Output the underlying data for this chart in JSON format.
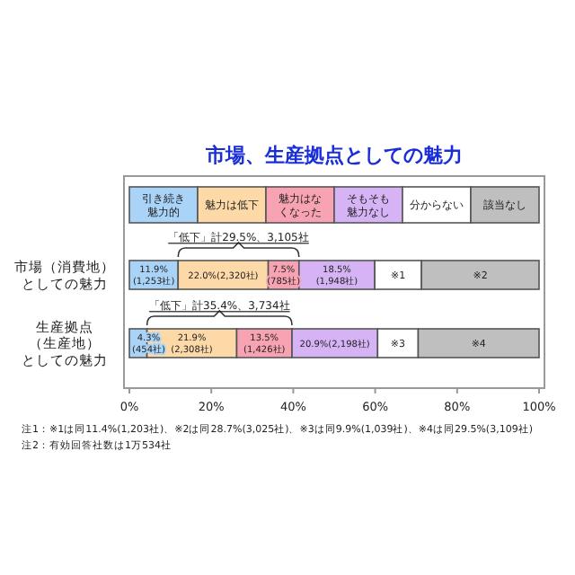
{
  "chart_data": {
    "type": "bar",
    "orientation": "horizontal",
    "stacked": true,
    "legend": "top",
    "title": "市場、生産拠点としての魅力",
    "categories": [
      "市場（消費地）としての魅力",
      "生産拠点（生産地）としての魅力"
    ],
    "xlim": [
      0,
      100
    ],
    "xticks": [
      {
        "value": 0,
        "label": "0%"
      },
      {
        "value": 20,
        "label": "20%"
      },
      {
        "value": 40,
        "label": "40%"
      },
      {
        "value": 60,
        "label": "60%"
      },
      {
        "value": 80,
        "label": "80%"
      },
      {
        "value": 100,
        "label": "100%"
      }
    ],
    "series": [
      {
        "name": "引き続き魅力的",
        "color": "#a9d3f7",
        "values": [
          11.9,
          4.3
        ],
        "value_labels": [
          "11.9%\n(1,253社)",
          "4.3%\n(454社)"
        ]
      },
      {
        "name": "魅力は低下",
        "color": "#fdd9a8",
        "values": [
          22.0,
          21.9
        ],
        "value_labels": [
          "22.0%(2,320社)",
          "21.9%\n(2,308社)"
        ]
      },
      {
        "name": "魅力はなくなった",
        "color": "#f7a3b3",
        "values": [
          7.5,
          13.5
        ],
        "value_labels": [
          "7.5%\n(785社)",
          "13.5%\n(1,426社)"
        ]
      },
      {
        "name": "そもそも魅力なし",
        "color": "#d5b3f5",
        "values": [
          18.5,
          20.9
        ],
        "value_labels": [
          "18.5%\n(1,948社)",
          "20.9%(2,198社)"
        ]
      },
      {
        "name": "分からない",
        "color": "#ffffff",
        "values": [
          11.4,
          9.9
        ]
      },
      {
        "name": "該当なし",
        "color": "#bfbfbf",
        "values": [
          28.7,
          29.5
        ]
      }
    ],
    "annotations": [
      "「低下」計29.5%、3,105社",
      "「低下」計35.4%、3,734社",
      "※1",
      "※2",
      "※3",
      "※4",
      "注1：※1は同11.4%(1,203社)、※2は同28.7%(3,025社)、※3は同9.9%(1,039社)、※4は同29.5%(3,109社)",
      "注2：有効回答社数は1万534社"
    ]
  }
}
